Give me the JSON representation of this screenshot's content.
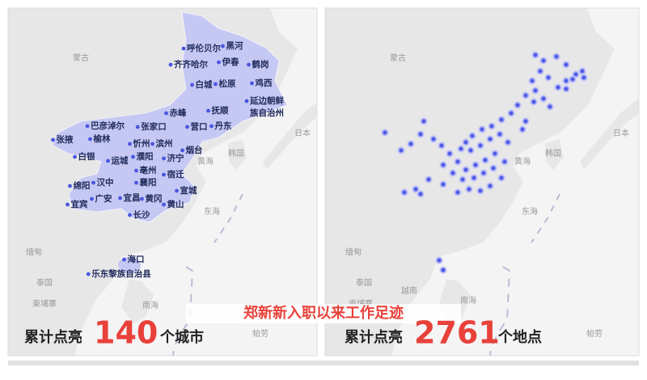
{
  "left_map": {
    "countries": [
      "蒙古",
      "日本",
      "韩国",
      "黄海",
      "东海",
      "缅甸",
      "泰国",
      "柬埔寨",
      "南海",
      "帕劳"
    ],
    "cities": [
      "呼伦贝尔",
      "黑河",
      "伊春",
      "齐齐哈尔",
      "鹤岗",
      "白城",
      "松原",
      "鸡西",
      "延边朝鲜",
      "族自治州",
      "抚顺",
      "赤峰",
      "丹东",
      "营口",
      "巴彦淖尔",
      "张家口",
      "榆林",
      "忻州",
      "滨州",
      "张掖",
      "白银",
      "运城",
      "濮阳",
      "济宁",
      "烟台",
      "亳州",
      "宿迁",
      "汉中",
      "绵阳",
      "襄阳",
      "宣城",
      "广安",
      "宜昌",
      "黄冈",
      "宜宾",
      "黄山",
      "长沙",
      "海口",
      "乐东黎族自治县"
    ]
  },
  "right_map": {
    "countries": [
      "蒙古",
      "日本",
      "韩国",
      "黄海",
      "东海",
      "缅甸",
      "泰国",
      "柬埔寨",
      "越南",
      "南海",
      "帕劳"
    ]
  },
  "title": "郑新新入职以来工作足迹",
  "left_stat": {
    "prefix": "累计点亮",
    "count": 140,
    "suffix": "个城市"
  },
  "right_stat": {
    "prefix": "累计点亮",
    "count": 2761,
    "suffix": "个地点"
  }
}
